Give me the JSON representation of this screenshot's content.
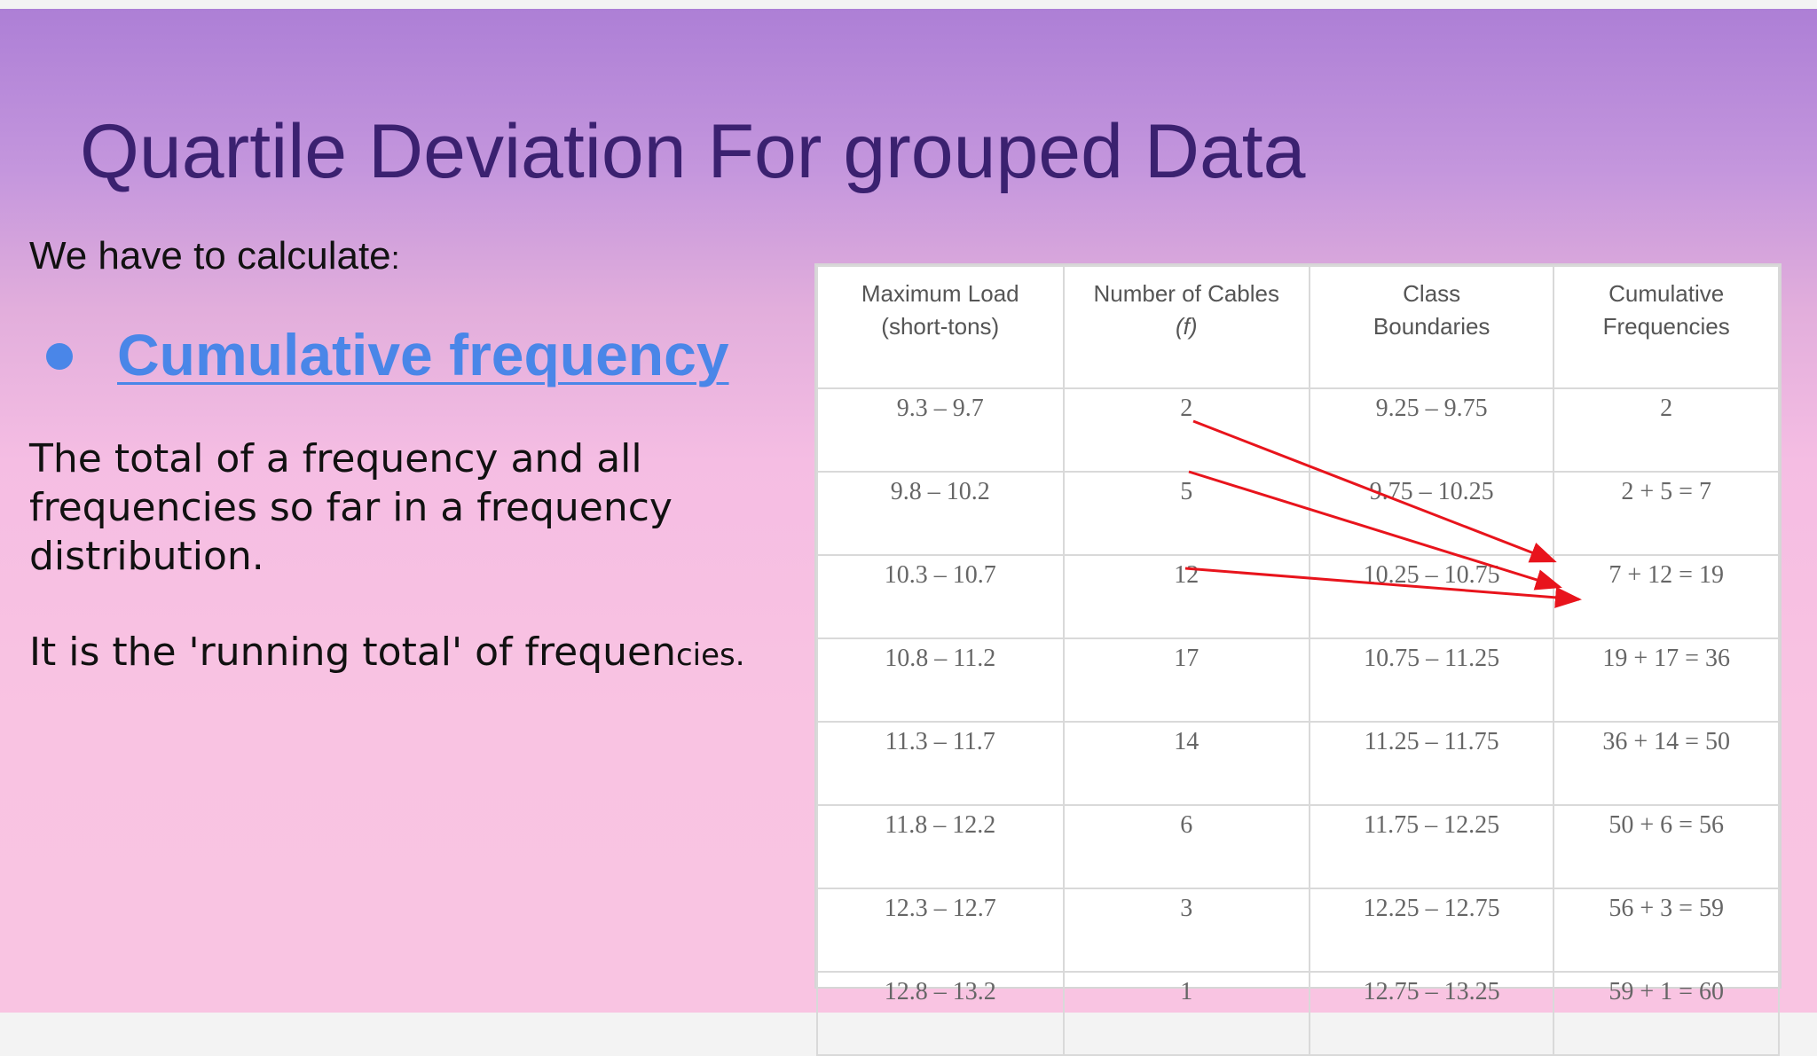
{
  "slide": {
    "title": "Quartile Deviation For grouped Data",
    "subtitle_main": "We have to calculate",
    "subtitle_colon": ":",
    "bullet": "Cumulative frequency",
    "definition_lines": [
      "The total of a frequency and all",
      "frequencies so far in a frequency",
      "distribution."
    ],
    "running_main": "It is the 'running total' of frequen",
    "running_small": "cies."
  },
  "colors": {
    "title": "#3b2170",
    "link": "#4a86e8",
    "arrow": "#e8141c"
  },
  "table": {
    "headers": [
      [
        "Maximum Load",
        "(short-tons)"
      ],
      [
        "Number of Cables",
        "(f)"
      ],
      [
        "Class",
        "Boundaries"
      ],
      [
        "Cumulative",
        "Frequencies"
      ]
    ],
    "rows": [
      [
        "9.3 – 9.7",
        "2",
        "9.25 – 9.75",
        "2"
      ],
      [
        "9.8 – 10.2",
        "5",
        "9.75 – 10.25",
        "2 + 5 = 7"
      ],
      [
        "10.3 – 10.7",
        "12",
        "10.25 – 10.75",
        "7 + 12 = 19"
      ],
      [
        "10.8 – 11.2",
        "17",
        "10.75 – 11.25",
        "19 + 17 = 36"
      ],
      [
        "11.3 – 11.7",
        "14",
        "11.25 – 11.75",
        "36 + 14 = 50"
      ],
      [
        "11.8 – 12.2",
        "6",
        "11.75 – 12.25",
        "50 + 6 = 56"
      ],
      [
        "12.3 – 12.7",
        "3",
        "12.25 – 12.75",
        "56 + 3 = 59"
      ],
      [
        "12.8 – 13.2",
        "1",
        "12.75 – 13.25",
        "59 + 1 = 60"
      ]
    ]
  }
}
